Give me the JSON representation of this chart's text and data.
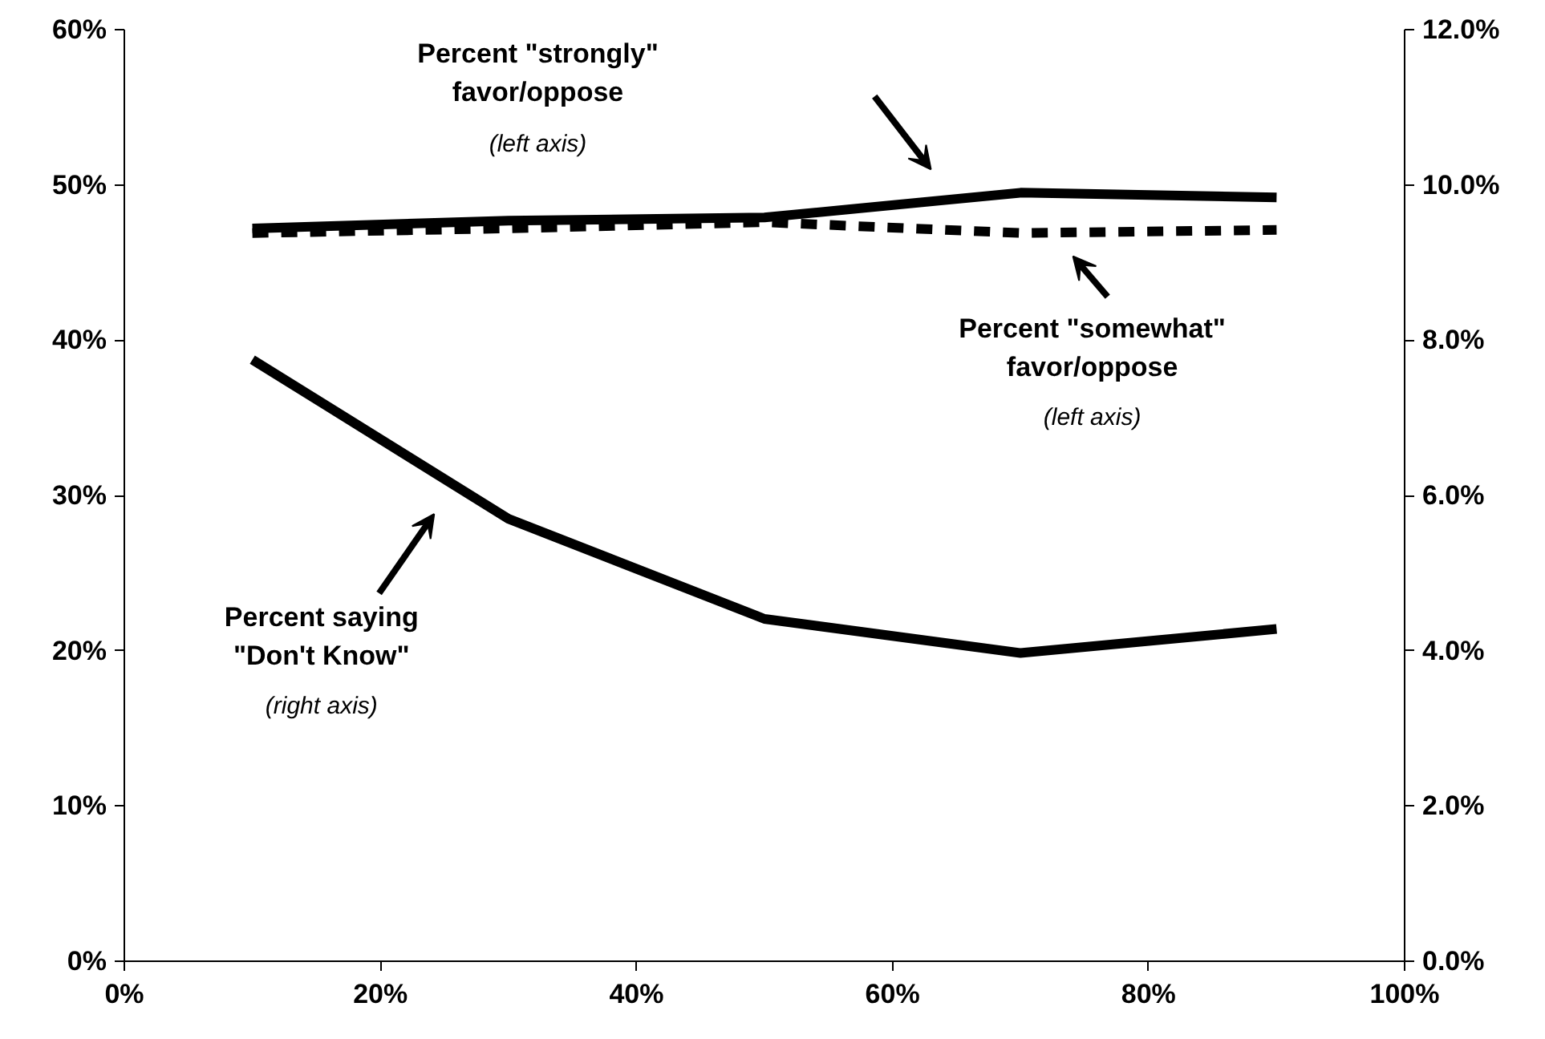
{
  "chart_data": {
    "type": "line",
    "x": [
      10,
      30,
      50,
      70,
      90
    ],
    "series": [
      {
        "color": "#000000",
        "line_style": "solid",
        "values": [
          47.2,
          47.7,
          47.9,
          49.5,
          49.2
        ]
      },
      {
        "color": "#000000",
        "line_style": "dashed",
        "values": [
          46.9,
          47.2,
          47.6,
          46.9,
          47.1
        ]
      },
      {
        "color": "#000000",
        "line_style": "solid",
        "axis": "y2",
        "values": [
          7.75,
          5.7,
          4.41,
          3.97,
          4.28
        ]
      }
    ],
    "xlim": [
      0,
      100
    ],
    "xticks": [
      {
        "value": 0,
        "label": "0%"
      },
      {
        "value": 20,
        "label": "20%"
      },
      {
        "value": 40,
        "label": "40%"
      },
      {
        "value": 60,
        "label": "60%"
      },
      {
        "value": 80,
        "label": "80%"
      },
      {
        "value": 100,
        "label": "100%"
      }
    ],
    "ylim": [
      0,
      60
    ],
    "yticks": [
      {
        "value": 0,
        "label": "0%"
      },
      {
        "value": 10,
        "label": "10%"
      },
      {
        "value": 20,
        "label": "20%"
      },
      {
        "value": 30,
        "label": "30%"
      },
      {
        "value": 40,
        "label": "40%"
      },
      {
        "value": 50,
        "label": "50%"
      },
      {
        "value": 60,
        "label": "60%"
      }
    ],
    "y2lim": [
      0,
      12
    ],
    "y2ticks": [
      {
        "value": 0,
        "label": "0.0%"
      },
      {
        "value": 2,
        "label": "2.0%"
      },
      {
        "value": 4,
        "label": "4.0%"
      },
      {
        "value": 6,
        "label": "6.0%"
      },
      {
        "value": 8,
        "label": "8.0%"
      },
      {
        "value": 10,
        "label": "10.0%"
      },
      {
        "value": 12,
        "label": "12.0%"
      }
    ],
    "annotations": [
      "Percent \"strongly\"\nfavor/oppose",
      "(left axis)",
      "Percent \"somewhat\"\nfavor/oppose",
      "(left axis)",
      "Percent saying\n\"Don't Know\"",
      "(right axis)"
    ]
  }
}
